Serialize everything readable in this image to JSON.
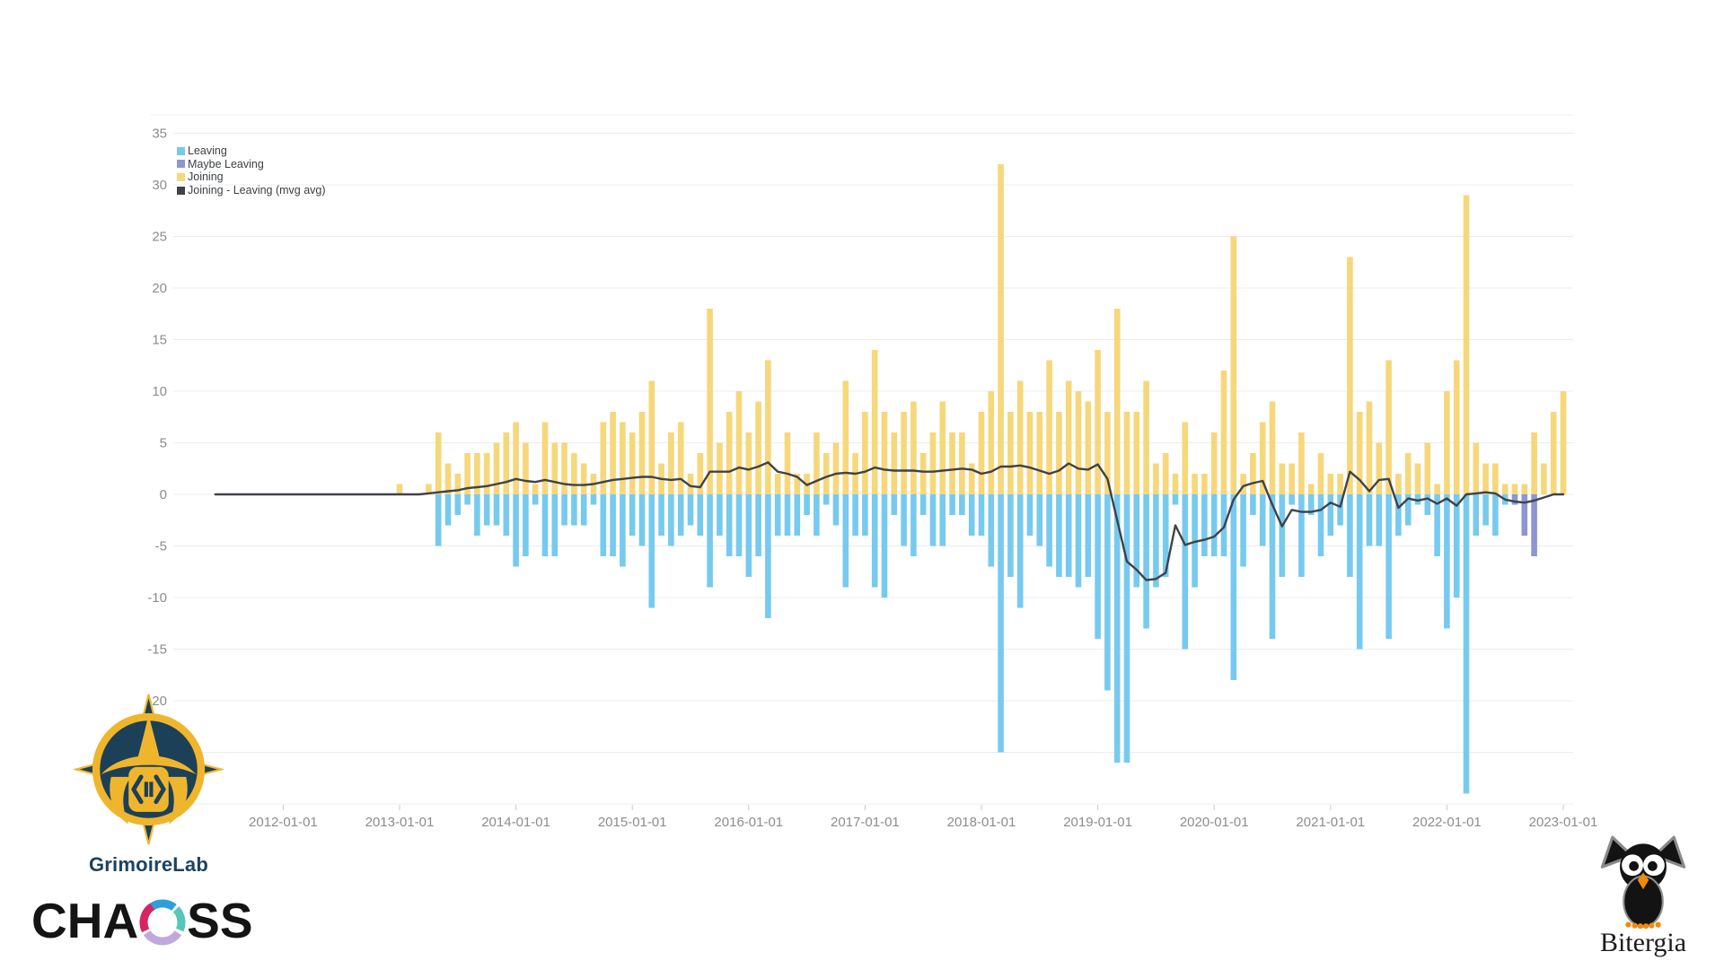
{
  "legend": {
    "items": [
      {
        "label": "Leaving",
        "color": "#77caef"
      },
      {
        "label": "Maybe Leaving",
        "color": "#8c95d6"
      },
      {
        "label": "Joining",
        "color": "#f6d77a"
      },
      {
        "label": "Joining - Leaving (mvg avg)",
        "color": "#3f4247"
      }
    ]
  },
  "branding": {
    "grimoirelab": "GrimoireLab",
    "chaoss_left": "CHA",
    "chaoss_right": "SS",
    "bitergia": "Bitergia"
  },
  "chart_data": {
    "type": "bar",
    "title": "",
    "xlabel": "",
    "ylabel": "",
    "ylim": [
      -30,
      35
    ],
    "grid": true,
    "legend_position": "top-left",
    "y_ticks": [
      35,
      30,
      25,
      20,
      15,
      10,
      5,
      0,
      -5,
      -10,
      -15,
      -20,
      -25,
      -30
    ],
    "x_tick_labels": [
      "2012-01-01",
      "2013-01-01",
      "2014-01-01",
      "2015-01-01",
      "2016-01-01",
      "2017-01-01",
      "2018-01-01",
      "2019-01-01",
      "2020-01-01",
      "2021-01-01",
      "2022-01-01",
      "2023-01-01"
    ],
    "x_tick_month_indices": [
      7,
      19,
      31,
      43,
      55,
      67,
      79,
      91,
      103,
      115,
      127,
      139
    ],
    "months": [
      "2011-06",
      "2011-07",
      "2011-08",
      "2011-09",
      "2011-10",
      "2011-11",
      "2011-12",
      "2012-01",
      "2012-02",
      "2012-03",
      "2012-04",
      "2012-05",
      "2012-06",
      "2012-07",
      "2012-08",
      "2012-09",
      "2012-10",
      "2012-11",
      "2012-12",
      "2013-01",
      "2013-02",
      "2013-03",
      "2013-04",
      "2013-05",
      "2013-06",
      "2013-07",
      "2013-08",
      "2013-09",
      "2013-10",
      "2013-11",
      "2013-12",
      "2014-01",
      "2014-02",
      "2014-03",
      "2014-04",
      "2014-05",
      "2014-06",
      "2014-07",
      "2014-08",
      "2014-09",
      "2014-10",
      "2014-11",
      "2014-12",
      "2015-01",
      "2015-02",
      "2015-03",
      "2015-04",
      "2015-05",
      "2015-06",
      "2015-07",
      "2015-08",
      "2015-09",
      "2015-10",
      "2015-11",
      "2015-12",
      "2016-01",
      "2016-02",
      "2016-03",
      "2016-04",
      "2016-05",
      "2016-06",
      "2016-07",
      "2016-08",
      "2016-09",
      "2016-10",
      "2016-11",
      "2016-12",
      "2017-01",
      "2017-02",
      "2017-03",
      "2017-04",
      "2017-05",
      "2017-06",
      "2017-07",
      "2017-08",
      "2017-09",
      "2017-10",
      "2017-11",
      "2017-12",
      "2018-01",
      "2018-02",
      "2018-03",
      "2018-04",
      "2018-05",
      "2018-06",
      "2018-07",
      "2018-08",
      "2018-09",
      "2018-10",
      "2018-11",
      "2018-12",
      "2019-01",
      "2019-02",
      "2019-03",
      "2019-04",
      "2019-05",
      "2019-06",
      "2019-07",
      "2019-08",
      "2019-09",
      "2019-10",
      "2019-11",
      "2019-12",
      "2020-01",
      "2020-02",
      "2020-03",
      "2020-04",
      "2020-05",
      "2020-06",
      "2020-07",
      "2020-08",
      "2020-09",
      "2020-10",
      "2020-11",
      "2020-12",
      "2021-01",
      "2021-02",
      "2021-03",
      "2021-04",
      "2021-05",
      "2021-06",
      "2021-07",
      "2021-08",
      "2021-09",
      "2021-10",
      "2021-11",
      "2021-12",
      "2022-01",
      "2022-02",
      "2022-03",
      "2022-04",
      "2022-05",
      "2022-06",
      "2022-07",
      "2022-08",
      "2022-09",
      "2022-10",
      "2022-11",
      "2022-12",
      "2023-01"
    ],
    "series": [
      {
        "name": "Joining",
        "color": "#f6d77a",
        "values": [
          0,
          0,
          0,
          0,
          0,
          0,
          0,
          0,
          0,
          0,
          0,
          0,
          0,
          0,
          0,
          0,
          0,
          0,
          0,
          1,
          0,
          0,
          1,
          6,
          3,
          2,
          4,
          4,
          4,
          5,
          6,
          7,
          5,
          1,
          7,
          5,
          5,
          4,
          3,
          2,
          7,
          8,
          7,
          6,
          8,
          11,
          3,
          6,
          7,
          2,
          4,
          18,
          5,
          8,
          10,
          6,
          9,
          13,
          2,
          6,
          2,
          2,
          6,
          4,
          5,
          11,
          4,
          8,
          14,
          8,
          6,
          8,
          9,
          4,
          6,
          9,
          6,
          6,
          3,
          8,
          10,
          32,
          8,
          11,
          8,
          8,
          13,
          8,
          11,
          10,
          9,
          14,
          8,
          18,
          8,
          8,
          11,
          3,
          4,
          2,
          7,
          2,
          2,
          6,
          12,
          25,
          2,
          4,
          7,
          9,
          3,
          3,
          6,
          1,
          4,
          2,
          2,
          23,
          8,
          9,
          5,
          13,
          2,
          4,
          3,
          5,
          1,
          10,
          13,
          29,
          5,
          3,
          3,
          1,
          1,
          1,
          6,
          3,
          8,
          10
        ]
      },
      {
        "name": "Leaving",
        "color": "#77caef",
        "values": [
          0,
          0,
          0,
          0,
          0,
          0,
          0,
          0,
          0,
          0,
          0,
          0,
          0,
          0,
          0,
          0,
          0,
          0,
          0,
          0,
          0,
          0,
          0,
          -5,
          -3,
          -2,
          -1,
          -4,
          -3,
          -3,
          -4,
          -7,
          -6,
          -1,
          -6,
          -6,
          -3,
          -3,
          -3,
          -1,
          -6,
          -6,
          -7,
          -4,
          -5,
          -11,
          -4,
          -5,
          -4,
          -3,
          -4,
          -9,
          -4,
          -6,
          -6,
          -8,
          -6,
          -12,
          -4,
          -4,
          -4,
          -2,
          -4,
          -1,
          -3,
          -9,
          -4,
          -4,
          -9,
          -10,
          -2,
          -5,
          -6,
          -2,
          -5,
          -5,
          -2,
          -2,
          -4,
          -4,
          -7,
          -25,
          -8,
          -11,
          -4,
          -5,
          -7,
          -8,
          -8,
          -9,
          -8,
          -14,
          -19,
          -26,
          -26,
          -9,
          -13,
          -9,
          -8,
          -1,
          -15,
          -9,
          -6,
          -6,
          -6,
          -18,
          -7,
          -2,
          -5,
          -14,
          -8,
          -1,
          -8,
          -2,
          -6,
          -4,
          -3,
          -8,
          -15,
          -5,
          -5,
          -14,
          -4,
          -3,
          -1,
          -2,
          -6,
          -13,
          -10,
          -29,
          -4,
          -3,
          -4,
          -1,
          0,
          0,
          0,
          0,
          0,
          0
        ]
      },
      {
        "name": "Maybe Leaving",
        "color": "#8c95d6",
        "values": [
          0,
          0,
          0,
          0,
          0,
          0,
          0,
          0,
          0,
          0,
          0,
          0,
          0,
          0,
          0,
          0,
          0,
          0,
          0,
          0,
          0,
          0,
          0,
          0,
          0,
          0,
          0,
          0,
          0,
          0,
          0,
          0,
          0,
          0,
          0,
          0,
          0,
          0,
          0,
          0,
          0,
          0,
          0,
          0,
          0,
          0,
          0,
          0,
          0,
          0,
          0,
          0,
          0,
          0,
          0,
          0,
          0,
          0,
          0,
          0,
          0,
          0,
          0,
          0,
          0,
          0,
          0,
          0,
          0,
          0,
          0,
          0,
          0,
          0,
          0,
          0,
          0,
          0,
          0,
          0,
          0,
          0,
          0,
          0,
          0,
          0,
          0,
          0,
          0,
          0,
          0,
          0,
          0,
          0,
          0,
          0,
          0,
          0,
          0,
          0,
          0,
          0,
          0,
          0,
          0,
          0,
          0,
          0,
          0,
          0,
          0,
          0,
          0,
          0,
          0,
          0,
          0,
          0,
          0,
          0,
          0,
          0,
          0,
          0,
          0,
          0,
          0,
          0,
          0,
          0,
          0,
          0,
          0,
          0,
          -1,
          -4,
          -6,
          0,
          0,
          0
        ]
      },
      {
        "name": "Joining - Leaving (mvg avg)",
        "type": "line",
        "color": "#3f4247",
        "values": [
          0,
          0,
          0,
          0,
          0,
          0,
          0,
          0,
          0,
          0,
          0,
          0,
          0,
          0,
          0,
          0,
          0,
          0,
          0,
          0,
          0,
          0,
          0.1,
          0.2,
          0.3,
          0.4,
          0.6,
          0.7,
          0.8,
          1,
          1.2,
          1.5,
          1.3,
          1.2,
          1.4,
          1.2,
          1,
          0.9,
          0.9,
          1,
          1.2,
          1.4,
          1.5,
          1.6,
          1.7,
          1.7,
          1.5,
          1.4,
          1.5,
          0.8,
          0.7,
          2.2,
          2.2,
          2.2,
          2.6,
          2.4,
          2.7,
          3.1,
          2.2,
          2,
          1.7,
          0.9,
          1.3,
          1.7,
          2,
          2.1,
          2,
          2.2,
          2.6,
          2.4,
          2.3,
          2.3,
          2.3,
          2.2,
          2.2,
          2.3,
          2.4,
          2.5,
          2.4,
          2,
          2.2,
          2.7,
          2.7,
          2.8,
          2.6,
          2.3,
          2,
          2.3,
          3,
          2.5,
          2.4,
          2.9,
          1.5,
          -2.5,
          -6.5,
          -7.3,
          -8.3,
          -8.2,
          -7.6,
          -3,
          -4.9,
          -4.6,
          -4.4,
          -4.1,
          -3.2,
          -0.5,
          0.8,
          1.1,
          1.3,
          -1,
          -3.1,
          -1.5,
          -1.7,
          -1.7,
          -1.5,
          -0.8,
          -1.2,
          2.2,
          1.4,
          0.3,
          1.4,
          1.5,
          -1.3,
          -0.4,
          -0.6,
          -0.4,
          -0.9,
          -0.4,
          -1.1,
          0,
          0.1,
          0.2,
          0.1,
          -0.5,
          -0.7,
          -0.8,
          -0.6,
          -0.3,
          0,
          0
        ]
      }
    ]
  }
}
